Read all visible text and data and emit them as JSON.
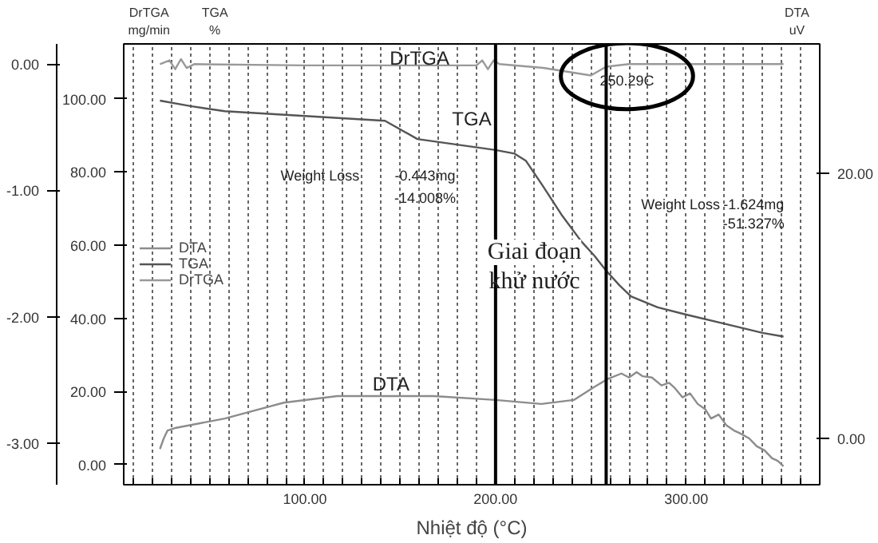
{
  "chart_data": {
    "type": "line",
    "xlabel": "Nhiệt độ (°C)",
    "ylabel": "TGA\n%",
    "y2label": "DTA\nuV",
    "y3label": "DrTGA\nmg/min",
    "xlim": [
      5,
      370
    ],
    "xticks": [
      {
        "value": 10,
        "label": null
      },
      {
        "value": 20,
        "label": null
      },
      {
        "value": 30,
        "label": null
      },
      {
        "value": 40,
        "label": null
      },
      {
        "value": 50,
        "label": null
      },
      {
        "value": 60,
        "label": null
      },
      {
        "value": 70,
        "label": null
      },
      {
        "value": 80,
        "label": null
      },
      {
        "value": 90,
        "label": null
      },
      {
        "value": 100,
        "label": "100.00"
      },
      {
        "value": 110,
        "label": null
      },
      {
        "value": 120,
        "label": null
      },
      {
        "value": 130,
        "label": null
      },
      {
        "value": 140,
        "label": null
      },
      {
        "value": 150,
        "label": null
      },
      {
        "value": 160,
        "label": null
      },
      {
        "value": 170,
        "label": null
      },
      {
        "value": 180,
        "label": null
      },
      {
        "value": 190,
        "label": null
      },
      {
        "value": 200,
        "label": "200.00"
      },
      {
        "value": 210,
        "label": null
      },
      {
        "value": 220,
        "label": null
      },
      {
        "value": 230,
        "label": null
      },
      {
        "value": 240,
        "label": null
      },
      {
        "value": 250,
        "label": null
      },
      {
        "value": 260,
        "label": null
      },
      {
        "value": 270,
        "label": null
      },
      {
        "value": 280,
        "label": null
      },
      {
        "value": 290,
        "label": null
      },
      {
        "value": 300,
        "label": "300.00"
      },
      {
        "value": 310,
        "label": null
      },
      {
        "value": 320,
        "label": null
      },
      {
        "value": 330,
        "label": null
      },
      {
        "value": 340,
        "label": null
      },
      {
        "value": 350,
        "label": null
      },
      {
        "value": 360,
        "label": null
      }
    ],
    "ylim": [
      -5.5,
      115
    ],
    "yticks": [
      {
        "value": 0,
        "label": "0.00"
      },
      {
        "value": 20,
        "label": "20.00"
      },
      {
        "value": 40,
        "label": "40.00"
      },
      {
        "value": 60,
        "label": "60.00"
      },
      {
        "value": 80,
        "label": "80.00"
      },
      {
        "value": 100,
        "label": "100.00"
      }
    ],
    "y2lim": [
      -3.5,
      29.8
    ],
    "y2ticks": [
      {
        "value": 0,
        "label": "0.00"
      },
      {
        "value": 20,
        "label": "20.00"
      }
    ],
    "y3lim": [
      -3.33,
      0.16
    ],
    "y3ticks": [
      {
        "value": 0,
        "label": "0.00"
      },
      {
        "value": -1,
        "label": "-1.00"
      },
      {
        "value": -2,
        "label": "-2.00"
      },
      {
        "value": -3,
        "label": "-3.00"
      }
    ],
    "grid": "x",
    "legend": "left",
    "series": [
      {
        "name": "DTA",
        "axis": "y2",
        "color": "#8c8c8c",
        "x": [
          24,
          26,
          28,
          32.5,
          58,
          89,
          117,
          167.5,
          200,
          224,
          241,
          252,
          259,
          266,
          270,
          274,
          277,
          282,
          287,
          291,
          294,
          298,
          302,
          306,
          310,
          313,
          317,
          321,
          325,
          328,
          333,
          337,
          341,
          345,
          348,
          351
        ],
        "values": [
          -0.8,
          0.0,
          0.6,
          0.8,
          1.5,
          2.7,
          3.2,
          3.2,
          2.9,
          2.6,
          2.9,
          3.9,
          4.5,
          4.9,
          4.6,
          5.0,
          4.7,
          4.6,
          4.0,
          4.2,
          3.8,
          3.1,
          3.4,
          2.6,
          2.2,
          1.5,
          1.8,
          1.0,
          0.6,
          0.4,
          0.0,
          -0.6,
          -0.9,
          -1.5,
          -1.7,
          -2.1
        ]
      },
      {
        "name": "TGA",
        "axis": "y",
        "color": "#555555",
        "x": [
          24,
          40,
          58,
          100,
          142,
          159,
          200,
          210,
          216,
          225,
          235,
          245,
          252,
          258,
          265,
          271,
          285,
          300,
          320,
          340,
          351
        ],
        "values": [
          99.5,
          98,
          96.6,
          95.3,
          94,
          89,
          86,
          85,
          83,
          76,
          68,
          61,
          57,
          53,
          49,
          46,
          43,
          41,
          38.5,
          36,
          35
        ]
      },
      {
        "name": "DrTGA",
        "axis": "y3",
        "color": "#999999",
        "x": [
          24,
          29,
          32,
          35,
          38,
          42,
          100,
          190,
          193,
          196,
          199,
          202,
          225,
          250,
          258,
          270,
          351
        ],
        "values": [
          0,
          0.03,
          -0.04,
          0.04,
          -0.03,
          0,
          -0.01,
          -0.01,
          0.03,
          -0.04,
          0.03,
          0,
          -0.03,
          -0.09,
          -0.02,
          0,
          0
        ]
      }
    ],
    "ref_lines": [
      {
        "axis": "x",
        "value": 200,
        "label": null,
        "color": "#000000"
      },
      {
        "axis": "x",
        "value": 258,
        "label": null,
        "color": "#000000"
      }
    ],
    "annotations": [
      "DrTGA",
      "TGA",
      "DTA",
      "Weight Loss",
      "-0.443mg",
      "-14.008%",
      "Weight Loss",
      "-1.624mg",
      "-51.327%",
      "250.29C",
      "Giai đoạn",
      "khử nước"
    ]
  }
}
